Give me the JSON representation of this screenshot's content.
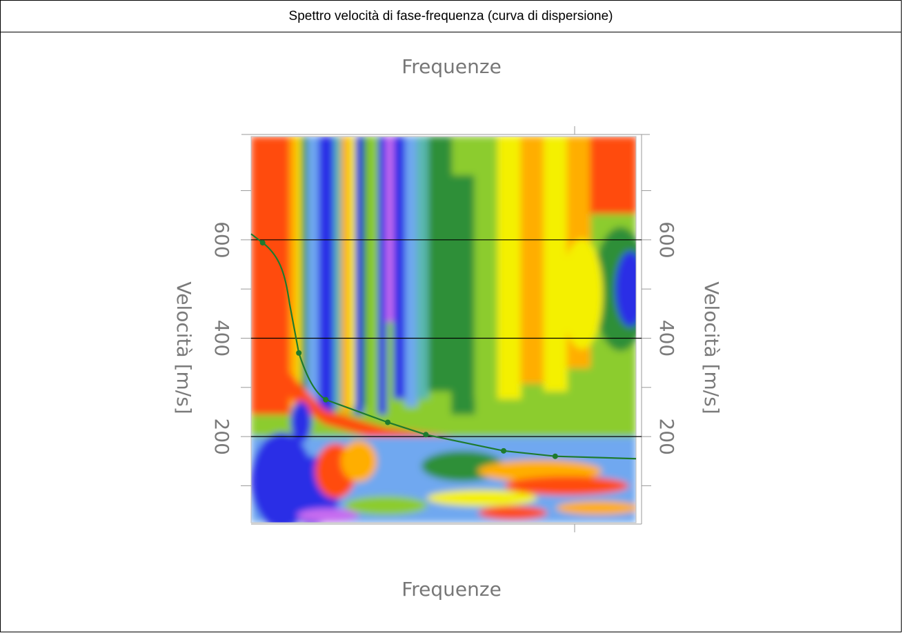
{
  "caption": "Spettro velocità di fase-frequenza (curva di dispersione)",
  "chart_data": {
    "type": "heatmap",
    "title": "Frequenze",
    "xlabel": "Frequenze",
    "ylabel": "Velocità [m/s]",
    "ylim": [
      25,
      810
    ],
    "ytick_labels": [
      "600",
      "400",
      "200"
    ],
    "ytick_values": [
      600,
      400,
      200
    ],
    "ytick_minor": [
      100,
      300,
      500,
      700
    ],
    "grid_lines_y": [
      600,
      400,
      200
    ],
    "dispersion_curve": {
      "color": "#1e7a2e",
      "points": [
        {
          "x": 0.03,
          "y": 594
        },
        {
          "x": 0.124,
          "y": 370
        },
        {
          "x": 0.194,
          "y": 275
        },
        {
          "x": 0.355,
          "y": 229
        },
        {
          "x": 0.454,
          "y": 204
        },
        {
          "x": 0.656,
          "y": 171
        },
        {
          "x": 0.79,
          "y": 160
        }
      ]
    },
    "colormap": [
      "#2a2fe6",
      "#6fa8f0",
      "#5ab8b0",
      "#2e8f38",
      "#8ccc2e",
      "#f4f000",
      "#ffae00",
      "#ff4c10",
      "#c86cf0"
    ]
  }
}
